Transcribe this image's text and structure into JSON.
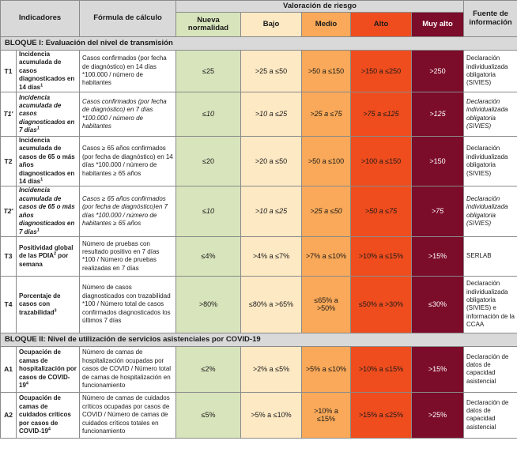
{
  "header": {
    "indicadores": "Indicadores",
    "formula": "Fórmula de cálculo",
    "valoracion": "Valoración de riesgo",
    "fuente": "Fuente de información",
    "levels": [
      "Nueva normalidad",
      "Bajo",
      "Medio",
      "Alto",
      "Muy alto"
    ]
  },
  "colors": {
    "nueva_normalidad": "#d8e4bc",
    "bajo": "#fde9c4",
    "medio": "#f9a959",
    "alto": "#f04d1e",
    "muy_alto": "#7b0c2a",
    "header_gray": "#d9d9d9"
  },
  "blocks": [
    {
      "title": "BLOQUE I: Evaluación del nivel de transmisión",
      "rows": [
        {
          "code": "T1",
          "italic": false,
          "indicator": "Incidencia acumulada de casos diagnosticados en 14 días",
          "indicator_sup": "1",
          "formula": "Casos confirmados (por fecha de diagnóstico) en 14 días *100.000 / número de habitantes",
          "values": [
            "≤25",
            ">25 a ≤50",
            ">50 a ≤150",
            ">150 a ≤250",
            ">250"
          ],
          "source": "Declaración individualizada obligatoria (SIVIES)"
        },
        {
          "code": "T1'",
          "italic": true,
          "indicator": "Incidencia acumulada de casos diagnosticados en 7 días",
          "indicator_sup": "1",
          "formula": "Casos confirmados (por fecha de diagnóstico) en 7 días *100.000 / número de habitantes",
          "values": [
            "≤10",
            ">10 a ≤25",
            ">25 a ≤75",
            ">75 a ≤125",
            ">125"
          ],
          "source": "Declaración individualizada obligatoria (SIVIES)"
        },
        {
          "code": "T2",
          "italic": false,
          "indicator": "Incidencia acumulada de casos de 65 o más años diagnosticados en 14 días",
          "indicator_sup": "1",
          "formula": "Casos ≥ 65 años confirmados (por fecha de diagnóstico) en 14 días *100.000 / número de habitantes ≥ 65 años",
          "values": [
            "≤20",
            ">20 a ≤50",
            ">50 a ≤100",
            ">100 a ≤150",
            ">150"
          ],
          "source": "Declaración individualizada obligatoria (SIVIES)"
        },
        {
          "code": "T2'",
          "italic": true,
          "indicator": "Incidencia acumulada de casos de 65 o más años diagnosticados en 7 días",
          "indicator_sup": "1",
          "formula": "Casos ≥ 65 años confirmados (por fecha de diagnóstico)en 7 días *100.000 / número de habitantes ≥ 65 años",
          "values": [
            "≤10",
            ">10 a ≤25",
            ">25 a ≤50",
            ">50 a ≤75",
            ">75"
          ],
          "source": "Declaración individualizada obligatoria (SIVIES)"
        },
        {
          "code": "T3",
          "italic": false,
          "indicator": "Positividad global de las PDIA",
          "indicator_sup": "2",
          "indicator_tail": " por semana",
          "formula": "Número de pruebas con resultado positivo en 7 días *100 / Número de pruebas realizadas en 7 días",
          "values": [
            "≤4%",
            ">4% a ≤7%",
            ">7% a ≤10%",
            ">10% a ≤15%",
            ">15%"
          ],
          "source": "SERLAB"
        },
        {
          "code": "T4",
          "italic": false,
          "indicator": "Porcentaje de casos con trazabilidad",
          "indicator_sup": "3",
          "formula": "Número de casos diagnosticados con trazabilidad *100 / Número total de casos confirmados diagnosticados los últimos 7 días",
          "values": [
            ">80%",
            "≤80% a >65%",
            "≤65% a >50%",
            "≤50% a >30%",
            "≤30%"
          ],
          "source": "Declaración individualizada obligatoria (SIVIES) e información de la CCAA"
        }
      ]
    },
    {
      "title": "BLOQUE II: Nivel de utilización de servicios asistenciales por COVID-19",
      "rows": [
        {
          "code": "A1",
          "italic": false,
          "indicator": "Ocupación de camas de hospitalización por casos de COVID-19",
          "indicator_sup": "4",
          "formula": "Número de camas de hospitalización ocupadas por casos de COVID / Número total de camas de hospitalización en funcionamiento",
          "values": [
            "≤2%",
            ">2% a ≤5%",
            ">5% a ≤10%",
            ">10% a ≤15%",
            ">15%"
          ],
          "source": "Declaración de datos de capacidad asistencial"
        },
        {
          "code": "A2",
          "italic": false,
          "indicator": "Ocupación de camas de cuidados críticos por casos de COVID-19",
          "indicator_sup": "4",
          "formula": "Número de camas de cuidados críticos ocupadas por casos de COVID / Número de camas de cuidados críticos totales en funcionamiento",
          "values": [
            "≤5%",
            ">5% a ≤10%",
            ">10% a ≤15%",
            ">15% a ≤25%",
            ">25%"
          ],
          "source": "Declaración de datos de capacidad asistencial"
        }
      ]
    }
  ]
}
